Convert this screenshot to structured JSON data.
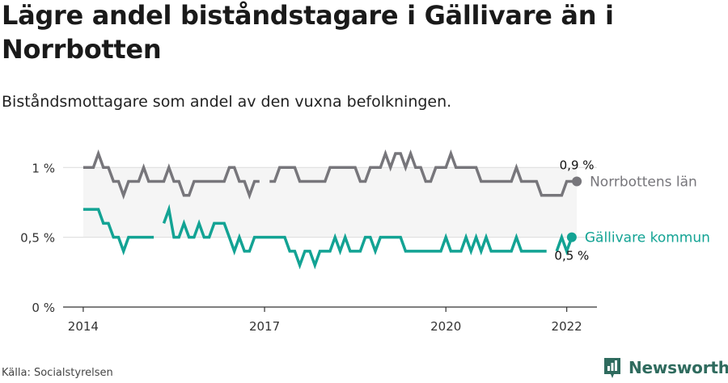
{
  "title": "Lägre andel biståndstagare i Gällivare än i Norrbotten",
  "subtitle": "Biståndsmottagare som andel av den vuxna befolkningen.",
  "source": "Källa: Socialstyrelsen",
  "brand": "Newsworthy",
  "colors": {
    "norrbotten": "#77767b",
    "gallivare": "#13a394",
    "band": "#f5f5f5",
    "grid": "#dcdcdc",
    "axis": "#333333",
    "brand": "#2f6b5e"
  },
  "chart_data": {
    "type": "line",
    "x_unit": "months since Jan 2014",
    "x_ticks": [
      {
        "x": 0,
        "label": "2014"
      },
      {
        "x": 36,
        "label": "2017"
      },
      {
        "x": 72,
        "label": "2020"
      },
      {
        "x": 96,
        "label": "2022"
      }
    ],
    "y_ticks": [
      {
        "y": 0,
        "label": "0 %"
      },
      {
        "y": 0.5,
        "label": "0,5 %"
      },
      {
        "y": 1,
        "label": "1 %"
      }
    ],
    "ylim": [
      0,
      1.1
    ],
    "xlim": [
      -4,
      102
    ],
    "grid": true,
    "band": true,
    "series": [
      {
        "name": "Norrbottens län",
        "end_label": "0,9 %",
        "values": [
          1,
          1,
          1,
          1.1,
          1,
          1,
          0.9,
          0.9,
          0.8,
          0.9,
          0.9,
          0.9,
          1,
          0.9,
          0.9,
          0.9,
          0.9,
          1,
          0.9,
          0.9,
          0.8,
          0.8,
          0.9,
          0.9,
          0.9,
          0.9,
          0.9,
          0.9,
          0.9,
          1,
          1,
          0.9,
          0.9,
          0.8,
          0.9,
          0.9,
          null,
          0.9,
          0.9,
          1,
          1,
          1,
          1,
          0.9,
          0.9,
          0.9,
          0.9,
          0.9,
          0.9,
          1,
          1,
          1,
          1,
          1,
          1,
          0.9,
          0.9,
          1,
          1,
          1,
          1.1,
          1,
          1.1,
          1.1,
          1,
          1.1,
          1,
          1,
          0.9,
          0.9,
          1,
          1,
          1,
          1.1,
          1,
          1,
          1,
          1,
          1,
          0.9,
          0.9,
          0.9,
          0.9,
          0.9,
          0.9,
          0.9,
          1,
          0.9,
          0.9,
          0.9,
          0.9,
          0.8,
          0.8,
          0.8,
          0.8,
          0.8,
          0.9,
          0.9,
          0.9
        ]
      },
      {
        "name": "Gällivare kommun",
        "end_label": "0,5 %",
        "values": [
          0.7,
          0.7,
          0.7,
          0.7,
          0.6,
          0.6,
          0.5,
          0.5,
          0.4,
          0.5,
          0.5,
          0.5,
          0.5,
          0.5,
          0.5,
          null,
          0.6,
          0.7,
          0.5,
          0.5,
          0.6,
          0.5,
          0.5,
          0.6,
          0.5,
          0.5,
          0.6,
          0.6,
          0.6,
          0.5,
          0.4,
          0.5,
          0.4,
          0.4,
          0.5,
          0.5,
          0.5,
          0.5,
          0.5,
          0.5,
          0.5,
          0.4,
          0.4,
          0.3,
          0.4,
          0.4,
          0.3,
          0.4,
          0.4,
          0.4,
          0.5,
          0.4,
          0.5,
          0.4,
          0.4,
          0.4,
          0.5,
          0.5,
          0.4,
          0.5,
          0.5,
          0.5,
          0.5,
          0.5,
          0.4,
          0.4,
          0.4,
          0.4,
          0.4,
          0.4,
          0.4,
          0.4,
          0.5,
          0.4,
          0.4,
          0.4,
          0.5,
          0.4,
          0.5,
          0.4,
          0.5,
          0.4,
          0.4,
          0.4,
          0.4,
          0.4,
          0.5,
          0.4,
          0.4,
          0.4,
          0.4,
          0.4,
          0.4,
          null,
          0.4,
          0.5,
          0.4,
          0.5
        ]
      }
    ]
  }
}
